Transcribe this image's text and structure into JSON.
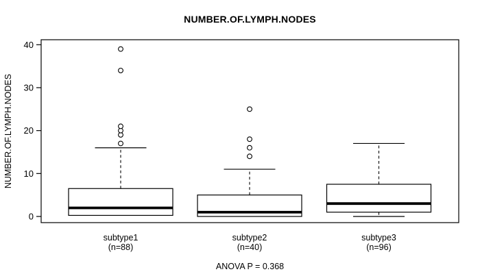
{
  "chart_data": {
    "type": "boxplot",
    "title": "NUMBER.OF.LYMPH.NODES",
    "ylabel": "NUMBER.OF.LYMPH.NODES",
    "xlabel": "",
    "ylim": [
      0,
      40
    ],
    "yticks": [
      0,
      10,
      20,
      30,
      40
    ],
    "grid": false,
    "annotation": "ANOVA P = 0.368",
    "groups": [
      {
        "label": "subtype1",
        "sublabel": "(n=88)",
        "q1": 0.25,
        "median": 2,
        "q3": 6.5,
        "whisker_low": 0.25,
        "whisker_high": 16,
        "outliers": [
          17,
          19,
          20,
          21,
          34,
          39
        ]
      },
      {
        "label": "subtype2",
        "sublabel": "(n=40)",
        "q1": 0,
        "median": 1,
        "q3": 5,
        "whisker_low": 0,
        "whisker_high": 11,
        "outliers": [
          14,
          16,
          18,
          25
        ]
      },
      {
        "label": "subtype3",
        "sublabel": "(n=96)",
        "q1": 1,
        "median": 3,
        "q3": 7.5,
        "whisker_low": 0,
        "whisker_high": 17,
        "outliers": []
      }
    ],
    "colors": {
      "stroke": "#000000",
      "box_fill": "#ffffff",
      "background": "#ffffff"
    }
  }
}
